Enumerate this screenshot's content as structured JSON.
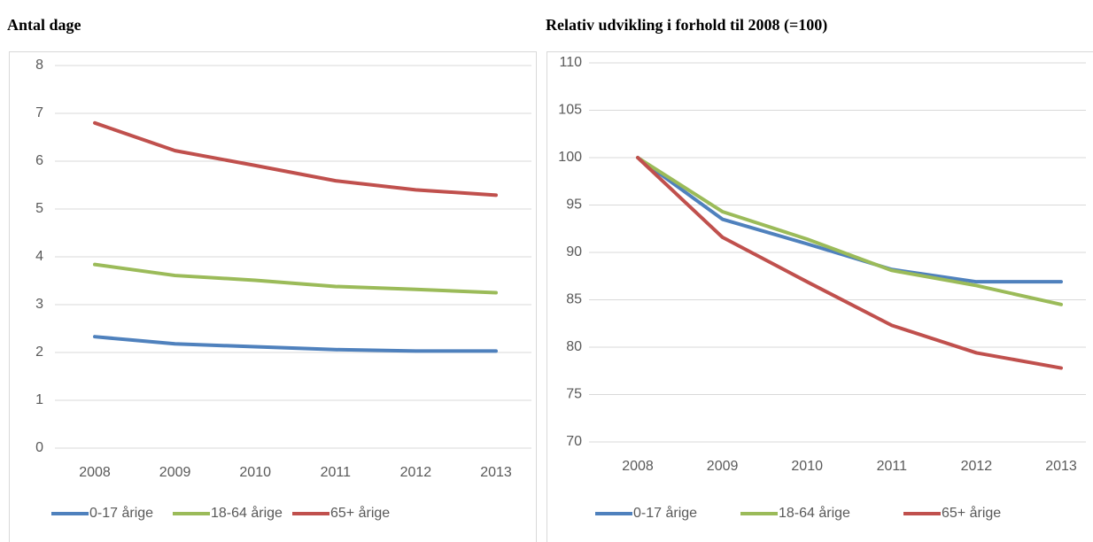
{
  "chart_data": [
    {
      "type": "line",
      "title": "Antal dage",
      "categories": [
        "2008",
        "2009",
        "2010",
        "2011",
        "2012",
        "2013"
      ],
      "series": [
        {
          "name": "0-17 årige",
          "color": "#4f81bd",
          "values": [
            2.33,
            2.18,
            2.12,
            2.06,
            2.03,
            2.03
          ]
        },
        {
          "name": "18-64 årige",
          "color": "#9bbb59",
          "values": [
            3.84,
            3.61,
            3.51,
            3.38,
            3.32,
            3.25
          ]
        },
        {
          "name": "65+ årige",
          "color": "#c0504d",
          "values": [
            6.8,
            6.22,
            5.91,
            5.59,
            5.4,
            5.29
          ]
        }
      ],
      "ylim": [
        0,
        8
      ],
      "yticks": [
        0,
        1,
        2,
        3,
        4,
        5,
        6,
        7,
        8
      ],
      "grid": true,
      "legend": "bottom"
    },
    {
      "type": "line",
      "title": "Relativ udvikling i forhold til 2008 (=100)",
      "categories": [
        "2008",
        "2009",
        "2010",
        "2011",
        "2012",
        "2013"
      ],
      "series": [
        {
          "name": "0-17 årige",
          "color": "#4f81bd",
          "values": [
            100,
            93.5,
            90.9,
            88.2,
            86.9,
            86.9
          ]
        },
        {
          "name": "18-64 årige",
          "color": "#9bbb59",
          "values": [
            100,
            94.3,
            91.4,
            88.1,
            86.5,
            84.5
          ]
        },
        {
          "name": "65+ årige",
          "color": "#c0504d",
          "values": [
            100,
            91.6,
            86.9,
            82.3,
            79.4,
            77.8
          ]
        }
      ],
      "ylim": [
        70,
        110
      ],
      "yticks": [
        70,
        75,
        80,
        85,
        90,
        95,
        100,
        105,
        110
      ],
      "grid": true,
      "legend": "bottom"
    }
  ]
}
